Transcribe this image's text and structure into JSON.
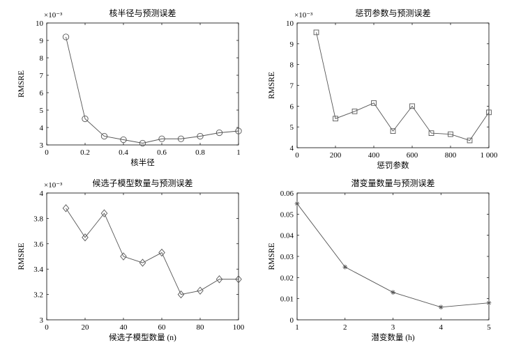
{
  "chart_data": [
    {
      "type": "line",
      "title": "核半径与预测误差",
      "xlabel": "核半径",
      "ylabel": "RMSRE",
      "y_multiplier": "×10⁻³",
      "xlim": [
        0,
        1
      ],
      "ylim": [
        3,
        10
      ],
      "xticks": [
        0,
        0.2,
        0.4,
        0.6,
        0.8,
        1
      ],
      "yticks": [
        3,
        4,
        5,
        6,
        7,
        8,
        9,
        10
      ],
      "xtick_labels": [
        "0",
        "0.2",
        "0.4",
        "0.6",
        "0.8",
        "1"
      ],
      "ytick_labels": [
        "3",
        "4",
        "5",
        "6",
        "7",
        "8",
        "9",
        "10"
      ],
      "marker": "circle",
      "x": [
        0.1,
        0.2,
        0.3,
        0.4,
        0.5,
        0.6,
        0.7,
        0.8,
        0.9,
        1.0
      ],
      "y": [
        9.2,
        4.5,
        3.5,
        3.3,
        3.1,
        3.35,
        3.35,
        3.5,
        3.7,
        3.8
      ]
    },
    {
      "type": "line",
      "title": "惩罚参数与预测误差",
      "xlabel": "惩罚参数",
      "ylabel": "RMSRE",
      "y_multiplier": "×10⁻³",
      "xlim": [
        0,
        1000
      ],
      "ylim": [
        4,
        10
      ],
      "xticks": [
        0,
        200,
        400,
        600,
        800,
        1000
      ],
      "yticks": [
        4,
        5,
        6,
        7,
        8,
        9,
        10
      ],
      "xtick_labels": [
        "0",
        "200",
        "400",
        "600",
        "800",
        "1 000"
      ],
      "ytick_labels": [
        "4",
        "5",
        "6",
        "7",
        "8",
        "9",
        "10"
      ],
      "marker": "square",
      "x": [
        100,
        200,
        300,
        400,
        500,
        600,
        700,
        800,
        900,
        1000
      ],
      "y": [
        9.55,
        5.4,
        5.75,
        6.15,
        4.8,
        6.0,
        4.7,
        4.65,
        4.35,
        5.7
      ]
    },
    {
      "type": "line",
      "title": "候选子模型数量与预测误差",
      "xlabel": "候选子模型数量 (n)",
      "ylabel": "RMSRE",
      "y_multiplier": "×10⁻³",
      "xlim": [
        0,
        100
      ],
      "ylim": [
        3,
        4
      ],
      "xticks": [
        0,
        20,
        40,
        60,
        80,
        100
      ],
      "yticks": [
        3,
        3.2,
        3.4,
        3.6,
        3.8,
        4
      ],
      "xtick_labels": [
        "0",
        "20",
        "40",
        "60",
        "80",
        "100"
      ],
      "ytick_labels": [
        "3",
        "3.2",
        "3.4",
        "3.6",
        "3.8",
        "4"
      ],
      "marker": "diamond",
      "x": [
        10,
        20,
        30,
        40,
        50,
        60,
        70,
        80,
        90,
        100
      ],
      "y": [
        3.88,
        3.65,
        3.84,
        3.5,
        3.45,
        3.53,
        3.2,
        3.23,
        3.32,
        3.32
      ]
    },
    {
      "type": "line",
      "title": "潜变量数量与预测误差",
      "xlabel": "潜变数量 (h)",
      "ylabel": "RMSRE",
      "y_multiplier": "",
      "xlim": [
        1,
        5
      ],
      "ylim": [
        0,
        0.06
      ],
      "xticks": [
        1,
        2,
        3,
        4,
        5
      ],
      "yticks": [
        0,
        0.01,
        0.02,
        0.03,
        0.04,
        0.05,
        0.06
      ],
      "xtick_labels": [
        "1",
        "2",
        "3",
        "4",
        "5"
      ],
      "ytick_labels": [
        "0",
        "0.01",
        "0.02",
        "0.03",
        "0.04",
        "0.05",
        "0.06"
      ],
      "marker": "asterisk",
      "x": [
        1,
        2,
        3,
        4,
        5
      ],
      "y": [
        0.055,
        0.025,
        0.013,
        0.006,
        0.008
      ]
    }
  ]
}
